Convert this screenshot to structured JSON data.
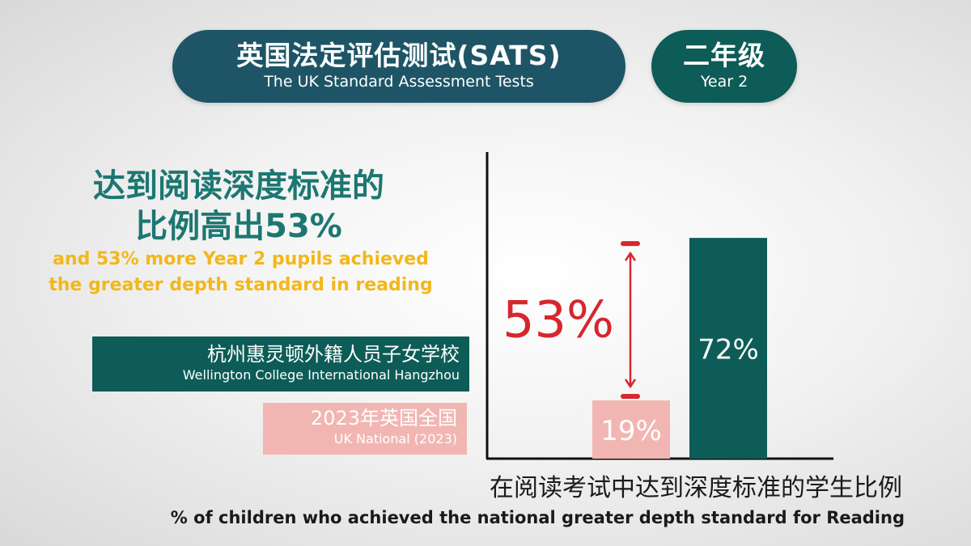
{
  "header": {
    "title_zh": "英国法定评估测试(SATS)",
    "title_en": "The UK Standard Assessment Tests",
    "grade_zh": "二年级",
    "grade_en": "Year 2"
  },
  "headline": {
    "line1_zh": "达到阅读深度标准的",
    "line2_zh": "比例高出53%",
    "line1_en": "and 53% more Year 2 pupils achieved",
    "line2_en": "the greater depth standard in reading"
  },
  "legend": {
    "school_zh": "杭州惠灵顿外籍人员子女学校",
    "school_en": "Wellington College International Hangzhou",
    "national_zh": "2023年英国全国",
    "national_en": "UK National (2023)"
  },
  "caption": {
    "zh": "在阅读考试中达到深度标准的学生比例",
    "en": "% of children who achieved the national greater depth standard for Reading"
  },
  "colors": {
    "school": "#0d5c57",
    "national": "#f2b6b2",
    "difference": "#d7262e",
    "headline": "#1c7772",
    "highlight": "#f2b71c"
  },
  "chart_data": {
    "type": "bar",
    "categories": [
      "UK National (2023)",
      "Wellington College International Hangzhou"
    ],
    "values": [
      19,
      72
    ],
    "value_labels": [
      "19%",
      "72%"
    ],
    "ylim": [
      0,
      100
    ],
    "difference": {
      "from": 19,
      "to": 72,
      "label": "53%"
    },
    "grid": false,
    "legend": "left"
  }
}
